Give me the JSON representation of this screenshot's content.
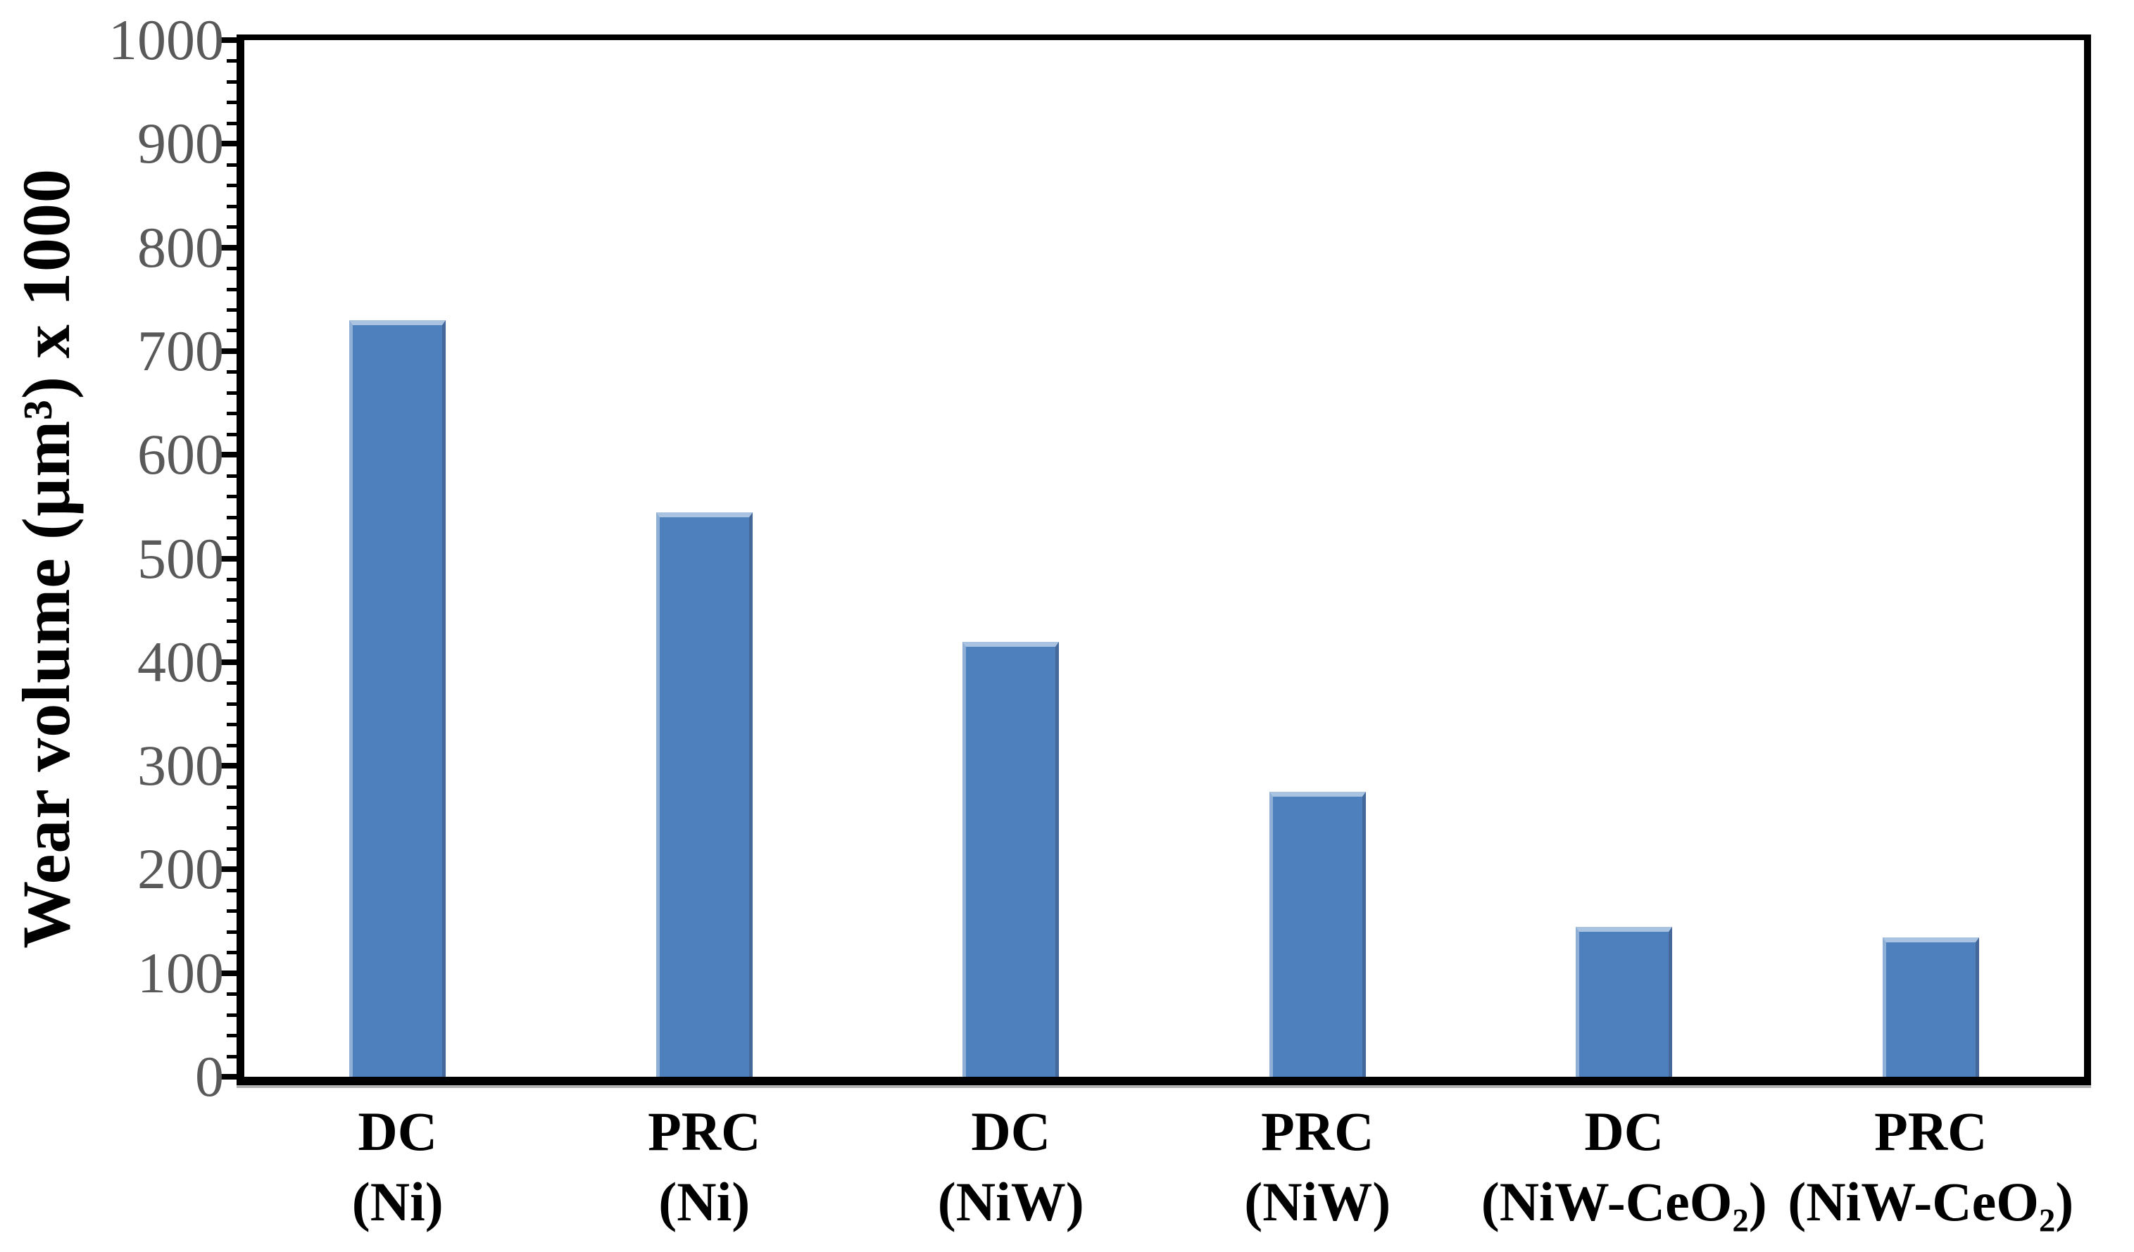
{
  "chart_data": {
    "type": "bar",
    "title": "",
    "ylabel": "Wear volume (µm³) x 1000",
    "xlabel": "",
    "categories": [
      "DC\n(Ni)",
      "PRC\n(Ni)",
      "DC\n(NiW)",
      "PRC\n(NiW)",
      "DC\n(NiW-CeO₂)",
      "PRC\n(NiW-CeO₂)"
    ],
    "values": [
      725,
      540,
      415,
      270,
      140,
      130
    ],
    "ylim": [
      0,
      1000
    ],
    "yticks": [
      0,
      100,
      200,
      300,
      400,
      500,
      600,
      700,
      800,
      900,
      1000
    ],
    "y_minor_step": 20,
    "grid": false,
    "legend": false,
    "bar_color": "#4d80bd",
    "bar_edge_top": "#a9c3e0",
    "bar_edge_left": "#8fafd6",
    "bar_edge_right": "#44689a",
    "axis_color": "#000000",
    "tick_label_color": "#595959",
    "x_label_color": "#000000"
  }
}
